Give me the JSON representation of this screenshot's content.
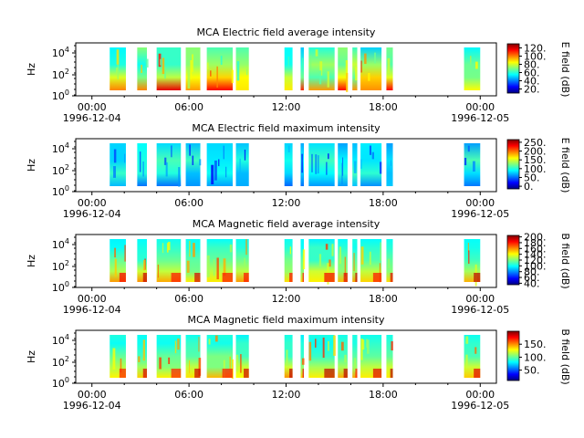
{
  "chart_data": [
    {
      "type": "heatmap",
      "title": "MCA  Electric field average intensity",
      "ylabel": "Hz",
      "y_ticks": [
        "10^4",
        "10^2",
        "10^0"
      ],
      "x_ticks": [
        "00:00",
        "06:00",
        "12:00",
        "18:00",
        "00:00"
      ],
      "x_dates": [
        "1996-12-04",
        "1996-12-05"
      ],
      "colorbar": {
        "label": "E field (dB)",
        "ticks": [
          "20.",
          "40.",
          "60.",
          "80.",
          "100.",
          "120."
        ],
        "range": [
          10,
          130
        ]
      },
      "pattern": "mixed"
    },
    {
      "type": "heatmap",
      "title": "MCA  Electric field maximum intensity",
      "ylabel": "Hz",
      "y_ticks": [
        "10^4",
        "10^2",
        "10^0"
      ],
      "x_ticks": [
        "00:00",
        "06:00",
        "12:00",
        "18:00",
        "00:00"
      ],
      "x_dates": [
        "1996-12-04",
        "1996-12-05"
      ],
      "colorbar": {
        "label": "E field (dB)",
        "ticks": [
          "0.",
          "50.",
          "100.",
          "150.",
          "200.",
          "250."
        ],
        "range": [
          -15,
          265
        ]
      },
      "pattern": "blue"
    },
    {
      "type": "heatmap",
      "title": "MCA  Magnetic field average intensity",
      "ylabel": "Hz",
      "y_ticks": [
        "10^4",
        "10^2",
        "10^0"
      ],
      "x_ticks": [
        "00:00",
        "06:00",
        "12:00",
        "18:00",
        "00:00"
      ],
      "x_dates": [
        "1996-12-04",
        "1996-12-05"
      ],
      "colorbar": {
        "label": "B field (dB)",
        "ticks": [
          "40.",
          "60.",
          "80.",
          "100.",
          "120.",
          "140.",
          "160.",
          "180.",
          "200."
        ],
        "range": [
          35,
          205
        ]
      },
      "pattern": "magnetic"
    },
    {
      "type": "heatmap",
      "title": "MCA  Magnetic field maximum intensity",
      "ylabel": "Hz",
      "y_ticks": [
        "10^4",
        "10^2",
        "10^0"
      ],
      "x_ticks": [
        "00:00",
        "06:00",
        "12:00",
        "18:00",
        "00:00"
      ],
      "x_dates": [
        "1996-12-04",
        "1996-12-05"
      ],
      "colorbar": {
        "label": "B field (dB)",
        "ticks": [
          "50.",
          "100.",
          "150."
        ],
        "range": [
          10,
          200
        ]
      },
      "pattern": "magnetic"
    }
  ],
  "time_range_hours": [
    -1,
    25
  ],
  "data_intervals_hours": [
    [
      1.1,
      2.1
    ],
    [
      2.8,
      3.4
    ],
    [
      4.0,
      5.5
    ],
    [
      5.8,
      6.7
    ],
    [
      7.1,
      8.7
    ],
    [
      8.9,
      9.7
    ],
    [
      11.9,
      12.4
    ],
    [
      12.9,
      13.1
    ],
    [
      13.4,
      15.0
    ],
    [
      15.2,
      15.8
    ],
    [
      16.1,
      16.4
    ],
    [
      16.6,
      17.9
    ],
    [
      18.2,
      18.6
    ],
    [
      23.0,
      24.0
    ]
  ],
  "colors": {
    "jet": [
      "#00007f",
      "#0000ff",
      "#007fff",
      "#00ffff",
      "#7fff7f",
      "#ffff00",
      "#ff7f00",
      "#ff0000",
      "#7f0000"
    ]
  }
}
